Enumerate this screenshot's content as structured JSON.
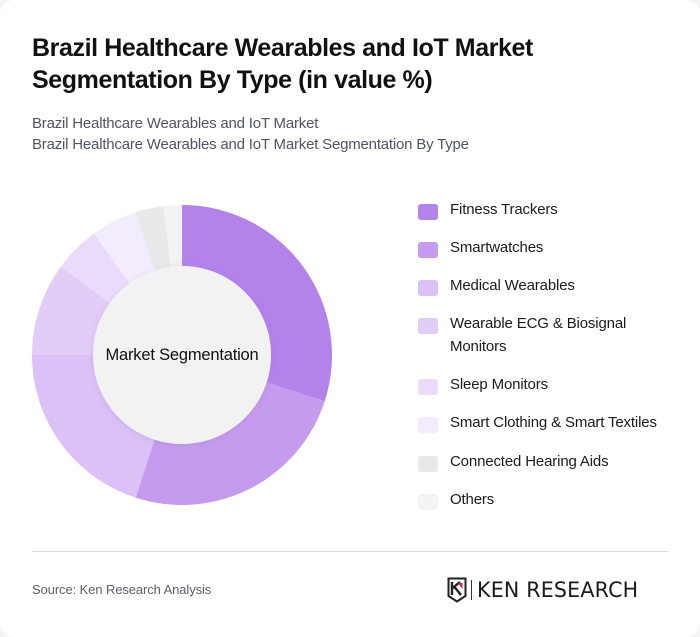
{
  "title": "Brazil Healthcare Wearables and IoT Market Segmentation By Type (in value %)",
  "subtitle": {
    "line1": "Brazil Healthcare Wearables and IoT Market",
    "line2": "Brazil Healthcare Wearables and IoT Market Segmentation By Type"
  },
  "chart": {
    "center_label": "Market Segmentation"
  },
  "legend": [
    {
      "label": "Fitness Trackers",
      "color": "#b383ea"
    },
    {
      "label": "Smartwatches",
      "color": "#c59ced"
    },
    {
      "label": "Medical Wearables",
      "color": "#dbc1f6"
    },
    {
      "label": "Wearable ECG & Biosignal Monitors",
      "color": "#e2cdf6"
    },
    {
      "label": "Sleep Monitors",
      "color": "#eadbfa"
    },
    {
      "label": "Smart Clothing & Smart Textiles",
      "color": "#f3ecfc"
    },
    {
      "label": "Connected Hearing Aids",
      "color": "#e9e9e9"
    },
    {
      "label": "Others",
      "color": "#f3f3f3"
    }
  ],
  "footer": {
    "source": "Source: Ken Research Analysis",
    "logo_text": "KEN RESEARCH"
  },
  "chart_data": {
    "type": "pie",
    "variant": "donut",
    "title": "Brazil Healthcare Wearables and IoT Market Segmentation By Type (in value %)",
    "subtitle": "Brazil Healthcare Wearables and IoT Market Segmentation By Type",
    "center_label": "Market Segmentation",
    "categories": [
      "Fitness Trackers",
      "Smartwatches",
      "Medical Wearables",
      "Wearable ECG & Biosignal Monitors",
      "Sleep Monitors",
      "Smart Clothing & Smart Textiles",
      "Connected Hearing Aids",
      "Others"
    ],
    "values": [
      30,
      25,
      20,
      10,
      5,
      5,
      3,
      2
    ],
    "colors": [
      "#b383ea",
      "#c59ced",
      "#dbc1f6",
      "#e2cdf6",
      "#eadbfa",
      "#f3ecfc",
      "#e9e9e9",
      "#f3f3f3"
    ],
    "unit": "%",
    "start_angle": "12 o'clock, clockwise",
    "legend_position": "right",
    "data_labels": false
  }
}
